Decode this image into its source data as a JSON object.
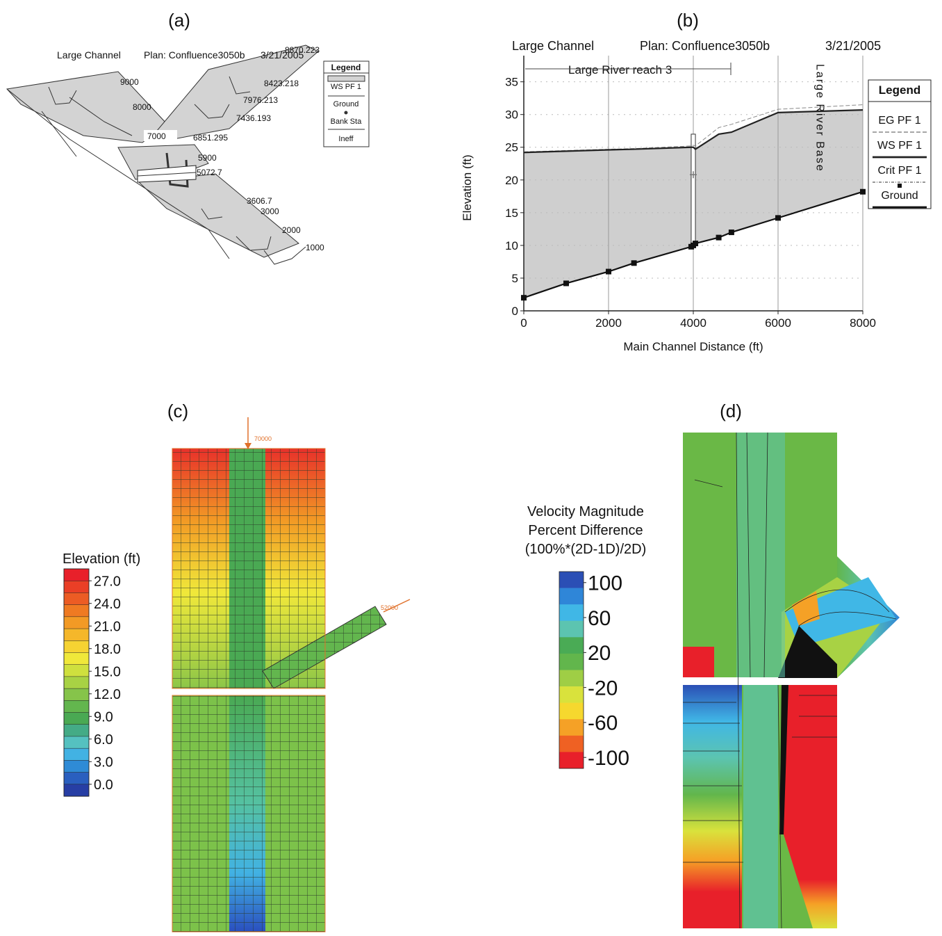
{
  "chart_data": [
    {
      "type": "perspective",
      "panel": "(a)",
      "title": [
        "Large Channel",
        "Plan: Confluence3050b",
        "3/21/2005"
      ],
      "legend_title": "Legend",
      "legend": [
        "WS PF 1",
        "Ground",
        "Bank Sta",
        "Ineff"
      ],
      "stations": [
        "9000",
        "8000",
        "7000",
        "6851.295",
        "5900",
        "5072.7",
        "3606.7",
        "3000",
        "2000",
        "1000",
        "8870.223",
        "8423.218",
        "7976.213",
        "7436.193"
      ]
    },
    {
      "type": "line",
      "panel": "(b)",
      "title": [
        "Large Channel",
        "Plan: Confluence3050b",
        "3/21/2005"
      ],
      "annotations": [
        "Large River reach 3",
        "Large River Base"
      ],
      "x_label": "Main Channel Distance (ft)",
      "y_label": "Elevation (ft)",
      "legend_title": "Legend",
      "x": [
        0,
        1000,
        2000,
        2600,
        3950,
        4000,
        4050,
        4600,
        4900,
        6000,
        8000
      ],
      "series": [
        {
          "name": "EG  PF 1",
          "color": "#888888",
          "values": [
            24.3,
            24.5,
            24.7,
            24.8,
            25.2,
            25.3,
            25.2,
            28,
            28.5,
            30.8,
            31.5
          ]
        },
        {
          "name": "WS  PF 1",
          "color": "#222222",
          "values": [
            24.2,
            24.4,
            24.6,
            24.7,
            25,
            25,
            24.7,
            27,
            27.3,
            30.3,
            30.7
          ]
        },
        {
          "name": "Crit  PF 1",
          "color": "#777777",
          "values": [
            null,
            null,
            null,
            null,
            null,
            20.8,
            null,
            null,
            null,
            null,
            null
          ]
        },
        {
          "name": "Ground",
          "color": "#111111",
          "values": [
            2,
            4.2,
            6,
            7.3,
            9.8,
            10,
            10.3,
            11.2,
            12,
            14.2,
            18.2
          ]
        }
      ],
      "xlim": [
        0,
        8000
      ],
      "xticks": [
        0,
        2000,
        4000,
        6000,
        8000
      ],
      "ylim": [
        0,
        39
      ],
      "yticks": [
        0,
        5,
        10,
        15,
        20,
        25,
        30,
        35
      ],
      "grid": true
    },
    {
      "type": "colormap",
      "panel": "(c)",
      "colorbar_title": [
        "Elevation (ft)"
      ],
      "inflows": [
        "70000",
        "52000"
      ],
      "colors": [
        "#e8202a",
        "#ea3f26",
        "#ec5c24",
        "#ef7a22",
        "#f29a25",
        "#f5b72a",
        "#f6d332",
        "#f0e83a",
        "#cfe03e",
        "#a8d244",
        "#86c44a",
        "#63b64e",
        "#4aa953",
        "#44ab86",
        "#55c1c0",
        "#42b2e3",
        "#2f8bd6",
        "#2a5fbf",
        "#273ea4"
      ],
      "ticks": [
        {
          "value": 27,
          "label": "27.0"
        },
        {
          "value": 24,
          "label": "24.0"
        },
        {
          "value": 21,
          "label": "21.0"
        },
        {
          "value": 18,
          "label": "18.0"
        },
        {
          "value": 15,
          "label": "15.0"
        },
        {
          "value": 12,
          "label": "12.0"
        },
        {
          "value": 9,
          "label": "9.0"
        },
        {
          "value": 6,
          "label": "6.0"
        },
        {
          "value": 3,
          "label": "3.0"
        },
        {
          "value": 0,
          "label": "0.0"
        }
      ]
    },
    {
      "type": "colormap",
      "panel": "(d)",
      "colorbar_title": [
        "Velocity Magnitude",
        "Percent Difference",
        "(100%*(2D-1D)/2D)"
      ],
      "colors": [
        "#2b4fb5",
        "#2f86d8",
        "#40b7e6",
        "#5cc4b0",
        "#4aab55",
        "#62b64c",
        "#9fce45",
        "#d9e23c",
        "#f6d82e",
        "#f5a126",
        "#ef6123",
        "#e8202a"
      ],
      "ticks": [
        100,
        60,
        20,
        -20,
        -60,
        -100
      ]
    }
  ]
}
